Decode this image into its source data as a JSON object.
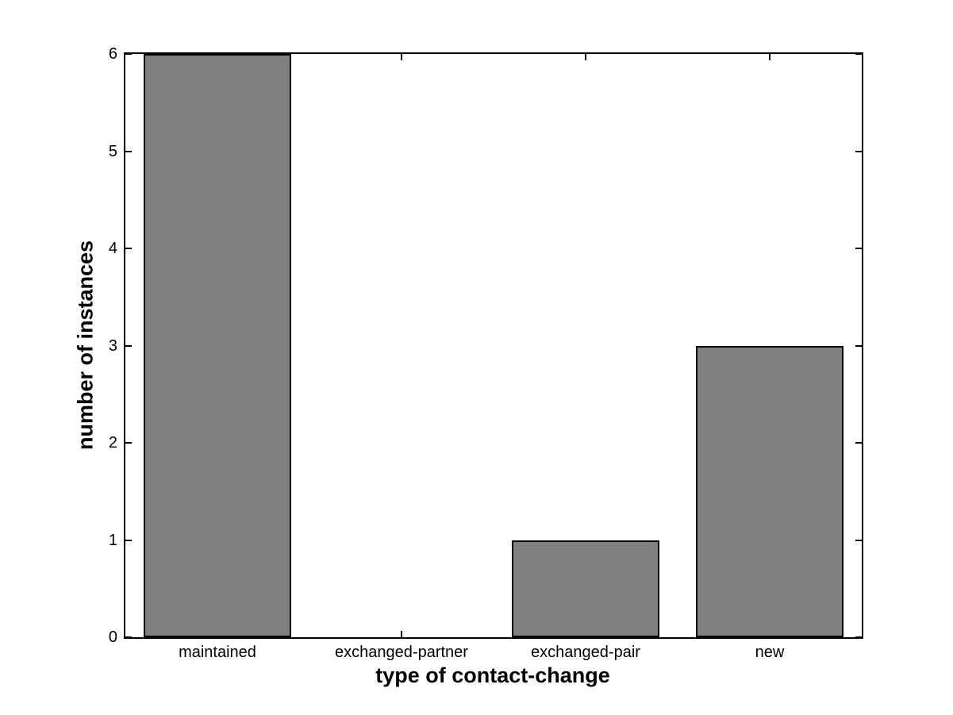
{
  "chart_data": {
    "type": "bar",
    "title": "",
    "xlabel": "type of contact-change",
    "ylabel": "number of instances",
    "categories": [
      "maintained",
      "exchanged-partner",
      "exchanged-pair",
      "new"
    ],
    "values": [
      6,
      0,
      1,
      3
    ],
    "ylim": [
      0,
      6
    ],
    "yticks": [
      0,
      1,
      2,
      3,
      4,
      5,
      6
    ],
    "bar_width_fraction": 0.8,
    "bar_color": "#808080",
    "bar_edge_color": "#000000",
    "axis_color": "#000000",
    "background_color": "#ffffff",
    "grid": false,
    "legend": null,
    "tick_direction": "in",
    "box": true
  }
}
